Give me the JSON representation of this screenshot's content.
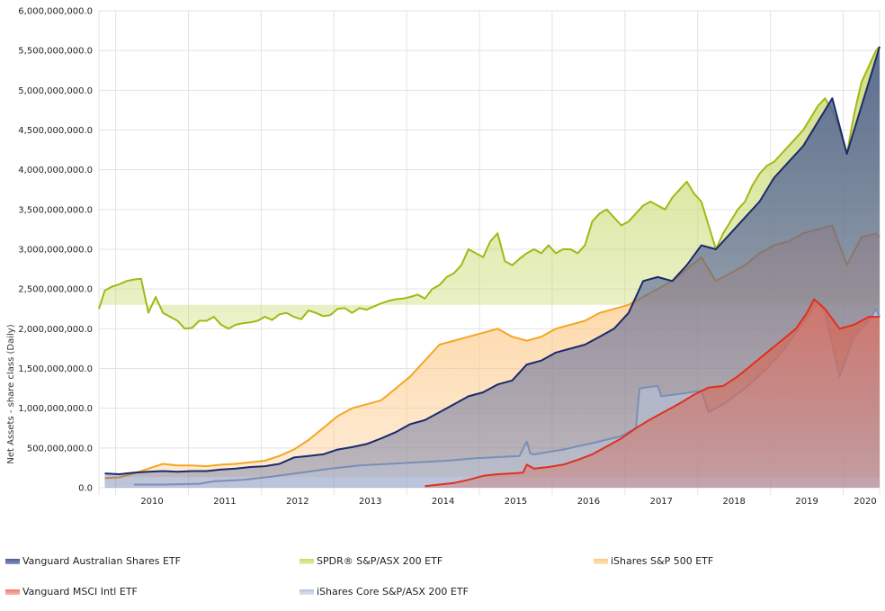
{
  "chart_data": {
    "type": "area",
    "title": "",
    "xlabel": "",
    "ylabel": "Net Assets - share class (Daily)",
    "ylim": [
      0,
      6000000000
    ],
    "xlim": [
      2009.62,
      2020.35
    ],
    "grid": true,
    "legend_position": "bottom",
    "y_ticks": [
      {
        "value": 0,
        "label": "0.0"
      },
      {
        "value": 500000000,
        "label": "500,000,000.0"
      },
      {
        "value": 1000000000,
        "label": "1,000,000,000.0"
      },
      {
        "value": 1500000000,
        "label": "1,500,000,000.0"
      },
      {
        "value": 2000000000,
        "label": "2,000,000,000.0"
      },
      {
        "value": 2500000000,
        "label": "2,500,000,000.0"
      },
      {
        "value": 3000000000,
        "label": "3,000,000,000.0"
      },
      {
        "value": 3500000000,
        "label": "3,500,000,000.0"
      },
      {
        "value": 4000000000,
        "label": "4,000,000,000.0"
      },
      {
        "value": 4500000000,
        "label": "4,500,000,000.0"
      },
      {
        "value": 5000000000,
        "label": "5,000,000,000.0"
      },
      {
        "value": 5500000000,
        "label": "5,500,000,000.0"
      },
      {
        "value": 6000000000,
        "label": "6,000,000,000.0"
      }
    ],
    "x_ticks": [
      {
        "value": 2010,
        "label": "2010"
      },
      {
        "value": 2011,
        "label": "2011"
      },
      {
        "value": 2012,
        "label": "2012"
      },
      {
        "value": 2013,
        "label": "2013"
      },
      {
        "value": 2014,
        "label": "2014"
      },
      {
        "value": 2015,
        "label": "2015"
      },
      {
        "value": 2016,
        "label": "2016"
      },
      {
        "value": 2017,
        "label": "2017"
      },
      {
        "value": 2018,
        "label": "2018"
      },
      {
        "value": 2019,
        "label": "2019"
      },
      {
        "value": 2020,
        "label": "2020"
      }
    ],
    "series": [
      {
        "name": "SPDR® S&P/ASX 200 ETF",
        "color": "#a3b814",
        "fill": "#c8d96a",
        "threshold": 2300000000,
        "x": [
          2009.62,
          2009.7,
          2009.8,
          2009.9,
          2010.0,
          2010.1,
          2010.2,
          2010.3,
          2010.4,
          2010.5,
          2010.6,
          2010.7,
          2010.8,
          2010.9,
          2011.0,
          2011.1,
          2011.2,
          2011.3,
          2011.4,
          2011.5,
          2011.6,
          2011.7,
          2011.8,
          2011.9,
          2012.0,
          2012.1,
          2012.2,
          2012.3,
          2012.4,
          2012.5,
          2012.6,
          2012.7,
          2012.8,
          2012.9,
          2013.0,
          2013.1,
          2013.2,
          2013.3,
          2013.4,
          2013.5,
          2013.6,
          2013.7,
          2013.8,
          2013.9,
          2014.0,
          2014.1,
          2014.2,
          2014.3,
          2014.4,
          2014.5,
          2014.6,
          2014.7,
          2014.8,
          2014.9,
          2015.0,
          2015.1,
          2015.2,
          2015.3,
          2015.4,
          2015.5,
          2015.6,
          2015.7,
          2015.8,
          2015.9,
          2016.0,
          2016.1,
          2016.2,
          2016.3,
          2016.4,
          2016.5,
          2016.6,
          2016.7,
          2016.8,
          2016.9,
          2017.0,
          2017.1,
          2017.2,
          2017.3,
          2017.4,
          2017.5,
          2017.6,
          2017.7,
          2017.8,
          2017.9,
          2018.0,
          2018.1,
          2018.2,
          2018.3,
          2018.4,
          2018.5,
          2018.6,
          2018.7,
          2018.8,
          2018.9,
          2019.0,
          2019.1,
          2019.2,
          2019.3,
          2019.4,
          2019.5,
          2019.6,
          2019.7,
          2019.8,
          2019.9,
          2020.0,
          2020.1,
          2020.2,
          2020.3,
          2020.35
        ],
        "values": [
          2250000000,
          2480000000,
          2530000000,
          2560000000,
          2600000000,
          2620000000,
          2630000000,
          2200000000,
          2400000000,
          2200000000,
          2150000000,
          2100000000,
          2000000000,
          2010000000,
          2100000000,
          2100000000,
          2150000000,
          2050000000,
          2000000000,
          2050000000,
          2070000000,
          2080000000,
          2100000000,
          2150000000,
          2110000000,
          2180000000,
          2200000000,
          2150000000,
          2120000000,
          2230000000,
          2200000000,
          2160000000,
          2170000000,
          2250000000,
          2260000000,
          2200000000,
          2260000000,
          2240000000,
          2280000000,
          2320000000,
          2350000000,
          2370000000,
          2380000000,
          2400000000,
          2430000000,
          2380000000,
          2500000000,
          2550000000,
          2650000000,
          2700000000,
          2800000000,
          3000000000,
          2950000000,
          2900000000,
          3100000000,
          3200000000,
          2850000000,
          2800000000,
          2880000000,
          2950000000,
          3000000000,
          2950000000,
          3050000000,
          2950000000,
          3000000000,
          3000000000,
          2950000000,
          3050000000,
          3350000000,
          3450000000,
          3500000000,
          3400000000,
          3300000000,
          3350000000,
          3450000000,
          3550000000,
          3600000000,
          3550000000,
          3500000000,
          3650000000,
          3750000000,
          3850000000,
          3700000000,
          3600000000,
          3300000000,
          3000000000,
          3200000000,
          3350000000,
          3500000000,
          3600000000,
          3800000000,
          3950000000,
          4050000000,
          4100000000,
          4200000000,
          4300000000,
          4400000000,
          4500000000,
          4650000000,
          4800000000,
          4900000000,
          4750000000,
          4500000000,
          4200000000,
          4700000000,
          5100000000,
          5300000000,
          5500000000,
          5550000000
        ]
      },
      {
        "name": "iShares S&P 500 ETF",
        "color": "#f5a623",
        "fill": "#fcc987",
        "threshold": 135000000,
        "x": [
          2009.7,
          2009.9,
          2010.1,
          2010.3,
          2010.5,
          2010.7,
          2010.9,
          2011.1,
          2011.3,
          2011.5,
          2011.7,
          2011.9,
          2012.1,
          2012.3,
          2012.5,
          2012.7,
          2012.9,
          2013.1,
          2013.3,
          2013.5,
          2013.7,
          2013.9,
          2014.1,
          2014.3,
          2014.5,
          2014.7,
          2014.9,
          2015.1,
          2015.3,
          2015.5,
          2015.7,
          2015.9,
          2016.1,
          2016.3,
          2016.5,
          2016.7,
          2016.9,
          2017.1,
          2017.3,
          2017.5,
          2017.7,
          2017.9,
          2018.1,
          2018.3,
          2018.5,
          2018.7,
          2018.9,
          2019.1,
          2019.3,
          2019.5,
          2019.7,
          2019.9,
          2020.1,
          2020.3,
          2020.35
        ],
        "values": [
          120000000,
          130000000,
          180000000,
          240000000,
          300000000,
          280000000,
          280000000,
          270000000,
          290000000,
          300000000,
          320000000,
          340000000,
          400000000,
          480000000,
          600000000,
          750000000,
          900000000,
          1000000000,
          1050000000,
          1100000000,
          1250000000,
          1400000000,
          1600000000,
          1800000000,
          1850000000,
          1900000000,
          1950000000,
          2000000000,
          1900000000,
          1850000000,
          1900000000,
          2000000000,
          2050000000,
          2100000000,
          2200000000,
          2250000000,
          2300000000,
          2400000000,
          2500000000,
          2600000000,
          2750000000,
          2900000000,
          2600000000,
          2700000000,
          2800000000,
          2950000000,
          3050000000,
          3100000000,
          3200000000,
          3250000000,
          3300000000,
          2800000000,
          3150000000,
          3200000000,
          3150000000
        ]
      },
      {
        "name": "Vanguard Australian Shares ETF",
        "color": "#1a2a6c",
        "fill": "#4a5a96",
        "threshold": 0,
        "x": [
          2009.7,
          2009.9,
          2010.1,
          2010.3,
          2010.5,
          2010.7,
          2010.9,
          2011.1,
          2011.3,
          2011.5,
          2011.7,
          2011.9,
          2012.1,
          2012.3,
          2012.5,
          2012.7,
          2012.9,
          2013.1,
          2013.3,
          2013.5,
          2013.7,
          2013.9,
          2014.1,
          2014.3,
          2014.5,
          2014.7,
          2014.9,
          2015.1,
          2015.3,
          2015.5,
          2015.7,
          2015.9,
          2016.1,
          2016.3,
          2016.5,
          2016.7,
          2016.9,
          2017.1,
          2017.3,
          2017.5,
          2017.7,
          2017.9,
          2018.1,
          2018.3,
          2018.5,
          2018.7,
          2018.9,
          2019.1,
          2019.3,
          2019.5,
          2019.7,
          2019.9,
          2020.1,
          2020.3,
          2020.35
        ],
        "values": [
          180000000,
          170000000,
          190000000,
          200000000,
          210000000,
          200000000,
          210000000,
          210000000,
          230000000,
          240000000,
          260000000,
          270000000,
          300000000,
          380000000,
          400000000,
          420000000,
          480000000,
          510000000,
          550000000,
          620000000,
          700000000,
          800000000,
          850000000,
          950000000,
          1050000000,
          1150000000,
          1200000000,
          1300000000,
          1350000000,
          1550000000,
          1600000000,
          1700000000,
          1750000000,
          1800000000,
          1900000000,
          2000000000,
          2200000000,
          2600000000,
          2650000000,
          2600000000,
          2800000000,
          3050000000,
          3000000000,
          3200000000,
          3400000000,
          3600000000,
          3900000000,
          4100000000,
          4300000000,
          4600000000,
          4900000000,
          4200000000,
          4800000000,
          5400000000,
          5550000000
        ]
      },
      {
        "name": "iShares Core S&P/ASX 200 ETF",
        "color": "#7a8fb5",
        "fill": "#b5c3dc",
        "threshold": 0,
        "x": [
          2010.1,
          2010.5,
          2011.0,
          2011.2,
          2011.6,
          2012.0,
          2012.4,
          2012.8,
          2013.2,
          2013.6,
          2014.0,
          2014.4,
          2014.8,
          2015.2,
          2015.4,
          2015.5,
          2015.55,
          2015.6,
          2016.0,
          2016.4,
          2016.8,
          2017.0,
          2017.05,
          2017.3,
          2017.35,
          2017.6,
          2017.9,
          2018.0,
          2018.2,
          2018.5,
          2018.8,
          2019.0,
          2019.2,
          2019.4,
          2019.5,
          2019.6,
          2019.8,
          2020.0,
          2020.2,
          2020.3,
          2020.35
        ],
        "values": [
          40000000,
          40000000,
          50000000,
          80000000,
          100000000,
          140000000,
          190000000,
          240000000,
          280000000,
          300000000,
          320000000,
          340000000,
          370000000,
          390000000,
          400000000,
          580000000,
          430000000,
          420000000,
          480000000,
          560000000,
          650000000,
          750000000,
          1250000000,
          1280000000,
          1150000000,
          1180000000,
          1220000000,
          950000000,
          1050000000,
          1250000000,
          1500000000,
          1700000000,
          1950000000,
          2200000000,
          2350000000,
          2200000000,
          1400000000,
          1900000000,
          2100000000,
          2250000000,
          2150000000
        ]
      },
      {
        "name": "Vanguard MSCI Intl ETF",
        "color": "#e0301e",
        "fill": "#d46a5a",
        "threshold": 0,
        "x": [
          2014.1,
          2014.3,
          2014.5,
          2014.7,
          2014.9,
          2015.1,
          2015.3,
          2015.45,
          2015.5,
          2015.6,
          2015.8,
          2016.0,
          2016.2,
          2016.4,
          2016.6,
          2016.8,
          2017.0,
          2017.2,
          2017.4,
          2017.6,
          2017.8,
          2018.0,
          2018.2,
          2018.4,
          2018.6,
          2018.8,
          2019.0,
          2019.2,
          2019.35,
          2019.45,
          2019.6,
          2019.8,
          2020.0,
          2020.2,
          2020.35
        ],
        "values": [
          20000000,
          40000000,
          60000000,
          100000000,
          150000000,
          170000000,
          180000000,
          190000000,
          290000000,
          240000000,
          260000000,
          290000000,
          350000000,
          420000000,
          520000000,
          620000000,
          750000000,
          860000000,
          960000000,
          1060000000,
          1170000000,
          1260000000,
          1280000000,
          1400000000,
          1550000000,
          1700000000,
          1850000000,
          2000000000,
          2200000000,
          2370000000,
          2250000000,
          2000000000,
          2050000000,
          2150000000,
          2150000000
        ]
      }
    ]
  },
  "legend": {
    "items": [
      {
        "label": "Vanguard Australian Shares ETF",
        "color": "#4a5a96"
      },
      {
        "label": "SPDR® S&P/ASX 200 ETF",
        "color": "#c8d96a"
      },
      {
        "label": "iShares S&P 500 ETF",
        "color": "#fcc987"
      },
      {
        "label": "Vanguard MSCI Intl ETF",
        "color": "#f07a70"
      },
      {
        "label": "iShares Core S&P/ASX 200 ETF",
        "color": "#b5c3dc"
      }
    ]
  }
}
